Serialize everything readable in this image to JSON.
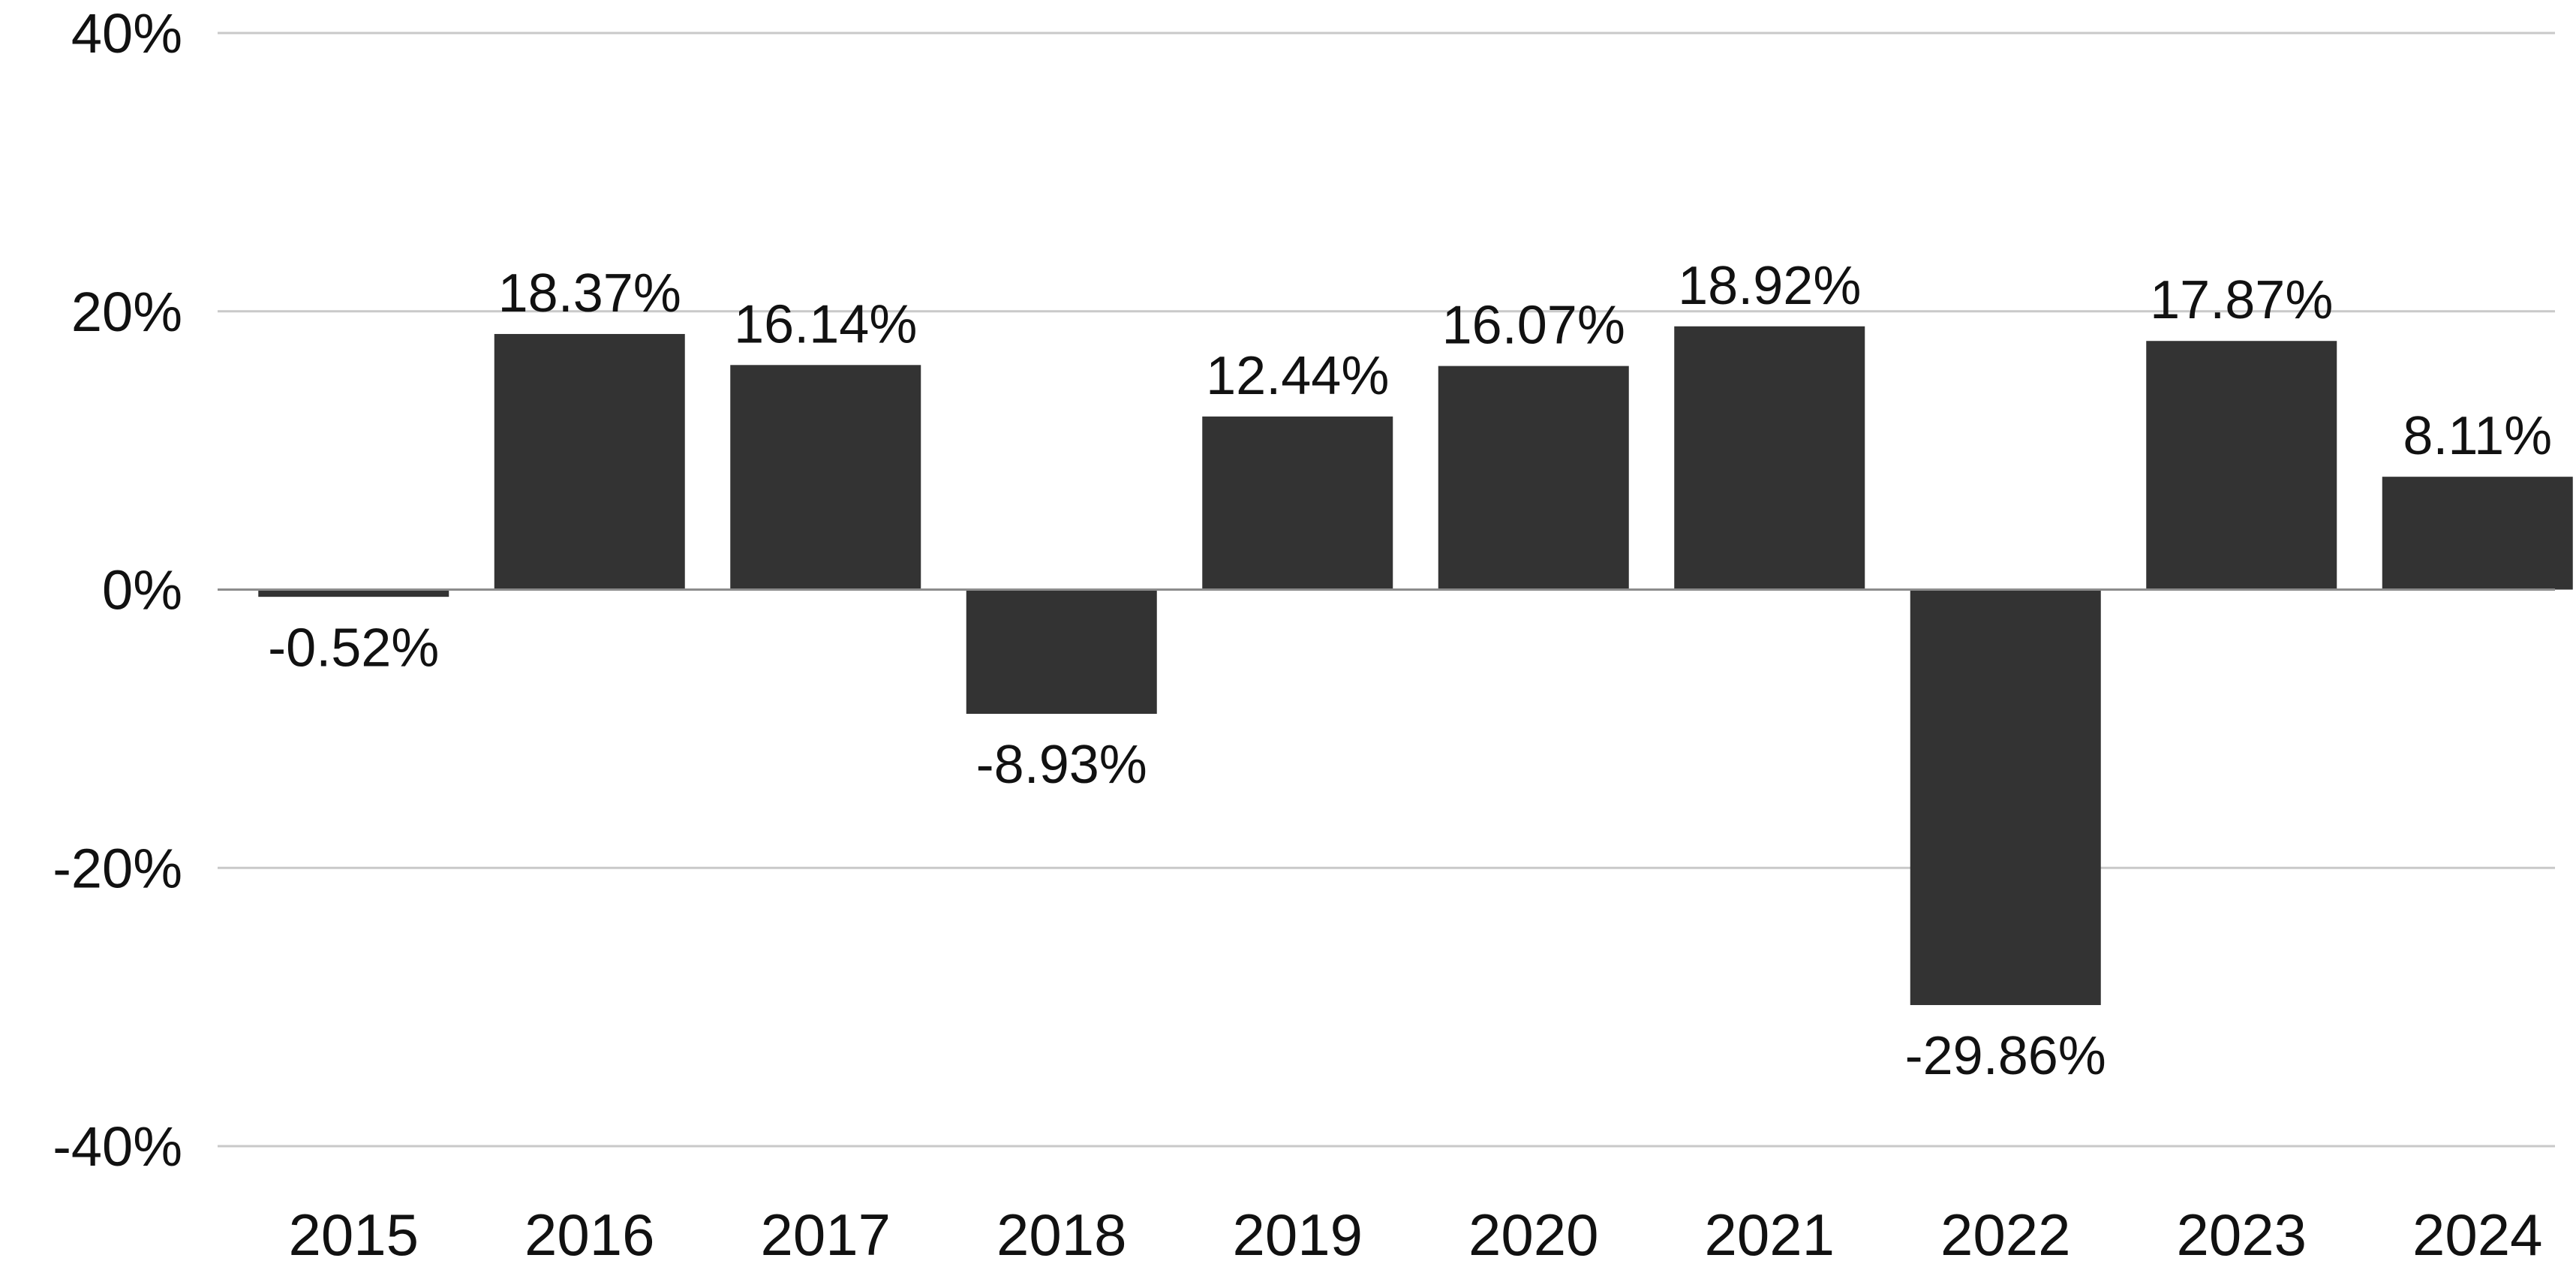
{
  "chart_data": {
    "type": "bar",
    "title": "",
    "xlabel": "",
    "ylabel": "",
    "categories": [
      "2015",
      "2016",
      "2017",
      "2018",
      "2019",
      "2020",
      "2021",
      "2022",
      "2023",
      "2024"
    ],
    "values": [
      -0.52,
      18.37,
      16.14,
      -8.93,
      12.44,
      16.07,
      18.92,
      -29.86,
      17.87,
      8.11
    ],
    "data_labels": [
      "-0.52%",
      "18.37%",
      "16.14%",
      "-8.93%",
      "12.44%",
      "16.07%",
      "18.92%",
      "-29.86%",
      "17.87%",
      "8.11%"
    ],
    "ylim": [
      -40,
      40
    ],
    "yticks": [
      40,
      20,
      0,
      -20,
      -40
    ],
    "ytick_labels": [
      "40%",
      "20%",
      "0%",
      "-20%",
      "-40%"
    ],
    "grid": true,
    "legend": "none",
    "bar_color": "#333333"
  }
}
